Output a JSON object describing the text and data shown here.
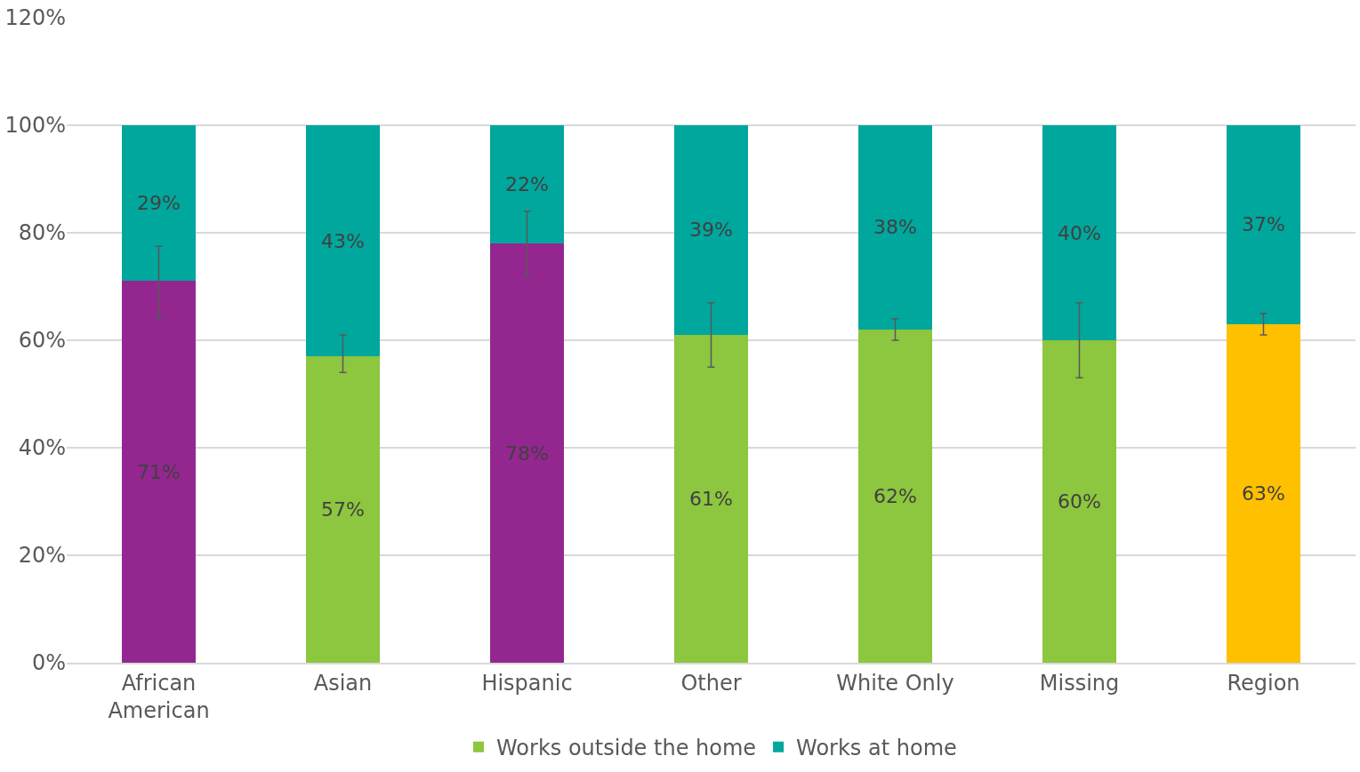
{
  "chart_data": {
    "type": "bar",
    "stacked": true,
    "categories": [
      "African American",
      "Asian",
      "Hispanic",
      "Other",
      "White Only",
      "Missing",
      "Region"
    ],
    "series": [
      {
        "name": "Works outside the home",
        "color": "#8dc63f",
        "colors": [
          "#93278f",
          "#8dc63f",
          "#93278f",
          "#8dc63f",
          "#8dc63f",
          "#8dc63f",
          "#ffc000"
        ],
        "values": [
          71,
          57,
          78,
          61,
          62,
          60,
          63
        ],
        "value_labels": [
          "71%",
          "57%",
          "78%",
          "61%",
          "62%",
          "60%",
          "63%"
        ],
        "errors": [
          [
            64,
            77.5
          ],
          [
            54,
            61
          ],
          [
            72,
            84
          ],
          [
            55,
            67
          ],
          [
            60,
            64
          ],
          [
            53,
            67
          ],
          [
            61,
            65
          ]
        ]
      },
      {
        "name": "Works at home",
        "color": "#00a79d",
        "values": [
          29,
          43,
          22,
          39,
          38,
          40,
          37
        ],
        "value_labels": [
          "29%",
          "43%",
          "22%",
          "39%",
          "38%",
          "40%",
          "37%"
        ]
      }
    ],
    "ylim": [
      0,
      120
    ],
    "yticks": [
      {
        "value": 0,
        "label": "0%"
      },
      {
        "value": 20,
        "label": "20%"
      },
      {
        "value": 40,
        "label": "40%"
      },
      {
        "value": 60,
        "label": "60%"
      },
      {
        "value": 80,
        "label": "80%"
      },
      {
        "value": 100,
        "label": "100%"
      },
      {
        "value": 120,
        "label": "120%"
      }
    ],
    "grid": "y",
    "legend": "bottom"
  }
}
